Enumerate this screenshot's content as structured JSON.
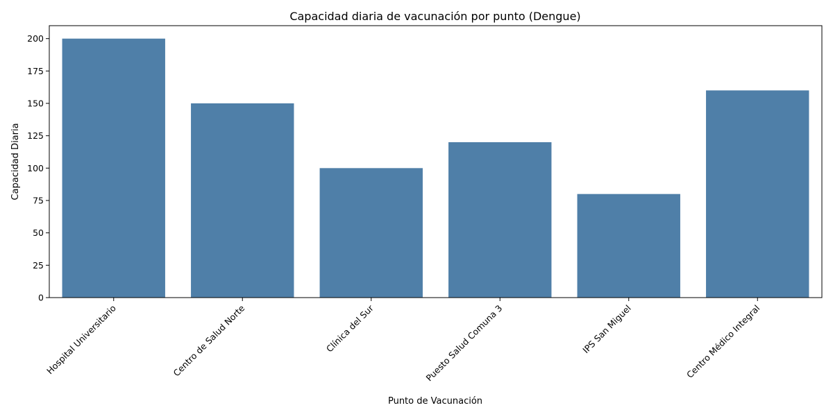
{
  "chart_data": {
    "type": "bar",
    "title": "Capacidad diaria de vacunación por punto (Dengue)",
    "xlabel": "Punto de Vacunación",
    "ylabel": "Capacidad Diaria",
    "categories": [
      "Hospital Universitario",
      "Centro de Salud Norte",
      "Clínica del Sur",
      "Puesto Salud Comuna 3",
      "IPS San Miguel",
      "Centro Médico Integral"
    ],
    "values": [
      200,
      150,
      100,
      120,
      80,
      160
    ],
    "ylim": [
      0,
      210
    ],
    "yticks": [
      0,
      25,
      50,
      75,
      100,
      125,
      150,
      175,
      200
    ],
    "bar_color": "#4f7fa8",
    "grid": false,
    "legend": "none"
  }
}
